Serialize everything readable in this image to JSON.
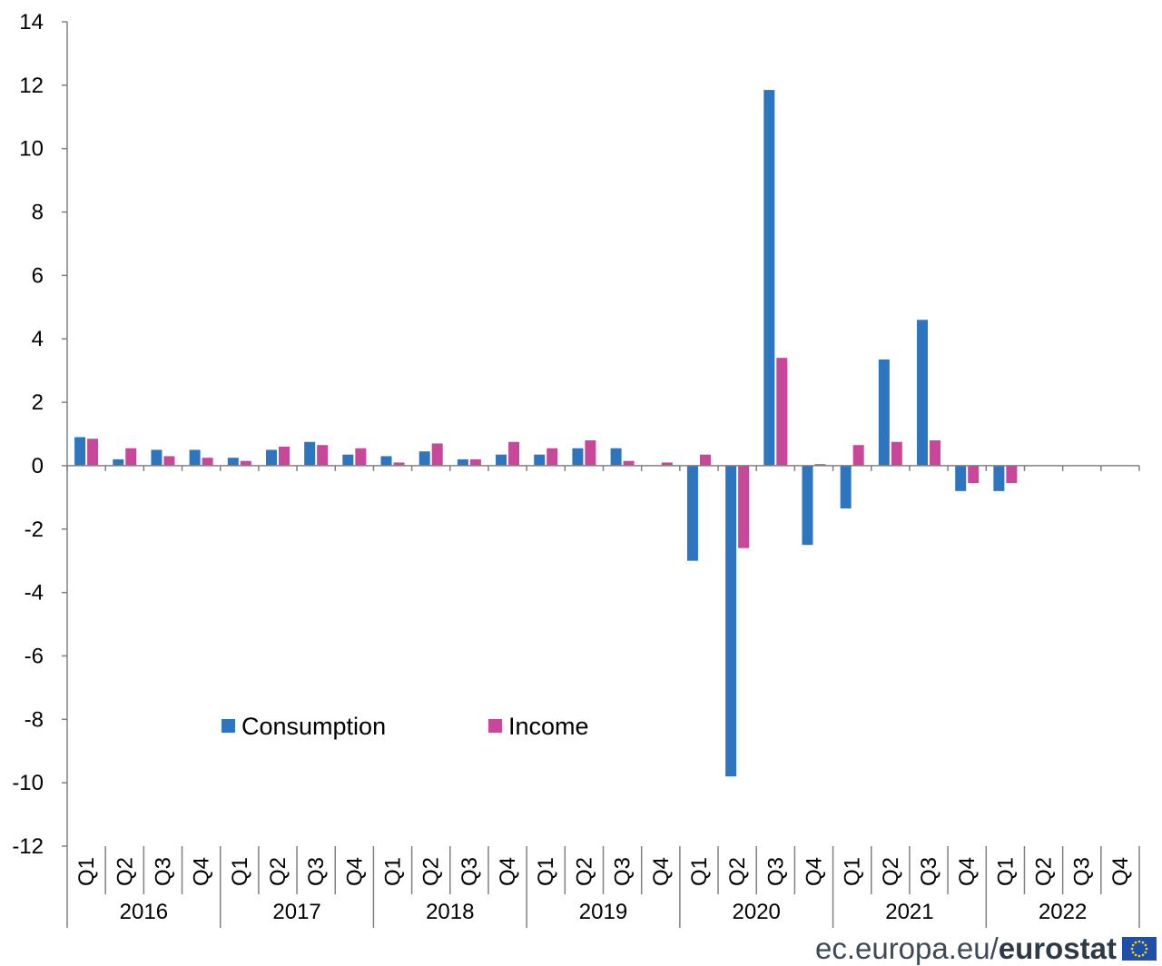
{
  "chart_data": {
    "type": "bar",
    "title": "",
    "xlabel": "",
    "ylabel": "",
    "ylim": [
      -12,
      14
    ],
    "yticks": [
      -12,
      -10,
      -8,
      -6,
      -4,
      -2,
      0,
      2,
      4,
      6,
      8,
      10,
      12,
      14
    ],
    "grid": false,
    "legend_position": "bottom-left",
    "years": [
      "2016",
      "2017",
      "2018",
      "2019",
      "2020",
      "2021",
      "2022"
    ],
    "quarters": [
      "Q1",
      "Q2",
      "Q3",
      "Q4"
    ],
    "categories": [
      "2016 Q1",
      "2016 Q2",
      "2016 Q3",
      "2016 Q4",
      "2017 Q1",
      "2017 Q2",
      "2017 Q3",
      "2017 Q4",
      "2018 Q1",
      "2018 Q2",
      "2018 Q3",
      "2018 Q4",
      "2019 Q1",
      "2019 Q2",
      "2019 Q3",
      "2019 Q4",
      "2020 Q1",
      "2020 Q2",
      "2020 Q3",
      "2020 Q4",
      "2021 Q1",
      "2021 Q2",
      "2021 Q3",
      "2021 Q4",
      "2022 Q1",
      "2022 Q2",
      "2022 Q3",
      "2022 Q4"
    ],
    "series": [
      {
        "name": "Consumption",
        "color": "#2e75c0",
        "values": [
          0.9,
          0.2,
          0.5,
          0.5,
          0.25,
          0.5,
          0.75,
          0.35,
          0.3,
          0.45,
          0.2,
          0.35,
          0.35,
          0.55,
          0.55,
          0.0,
          -3.0,
          -9.8,
          11.85,
          -2.5,
          -1.35,
          3.35,
          4.6,
          -0.8,
          -0.8,
          null,
          null,
          null
        ]
      },
      {
        "name": "Income",
        "color": "#c8479b",
        "values": [
          0.85,
          0.55,
          0.3,
          0.25,
          0.15,
          0.6,
          0.65,
          0.55,
          0.1,
          0.7,
          0.2,
          0.75,
          0.55,
          0.8,
          0.15,
          0.1,
          0.35,
          -2.6,
          3.4,
          0.05,
          0.65,
          0.75,
          0.8,
          -0.55,
          -0.55,
          null,
          null,
          null
        ]
      }
    ]
  },
  "footer": {
    "site": "ec.europa.eu/",
    "brand": "eurostat",
    "flag_icon": "eu-flag-icon"
  }
}
